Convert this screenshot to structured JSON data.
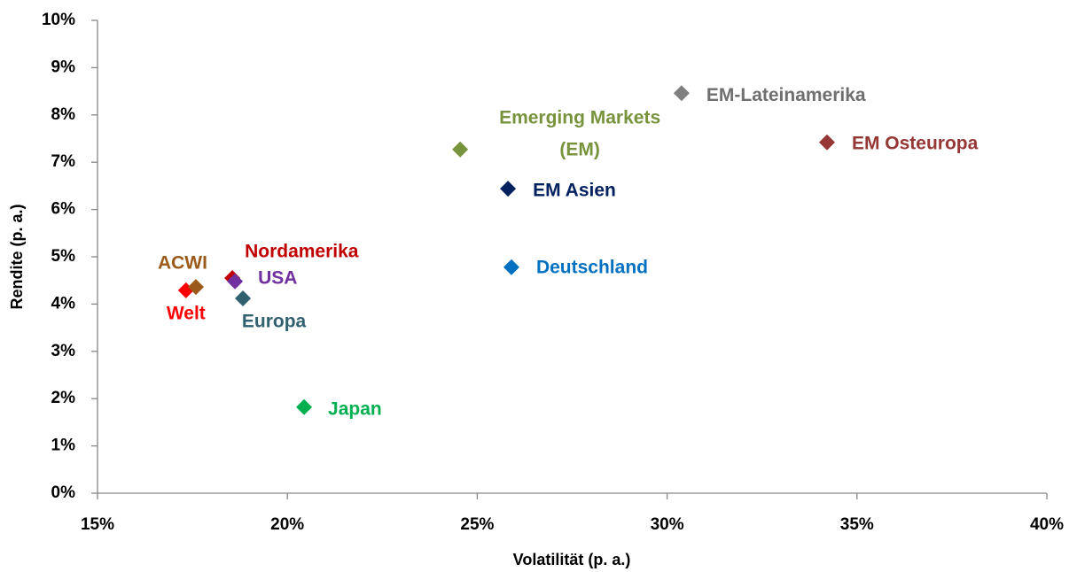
{
  "chart_data": {
    "type": "scatter",
    "x_label": "Volatilität (p. a.)",
    "y_label": "Rendite (p. a.)",
    "xlim": [
      15,
      40
    ],
    "xticks": [
      {
        "value": 15,
        "label": "15%"
      },
      {
        "value": 20,
        "label": "20%"
      },
      {
        "value": 25,
        "label": "25%"
      },
      {
        "value": 30,
        "label": "30%"
      },
      {
        "value": 35,
        "label": "35%"
      },
      {
        "value": 40,
        "label": "40%"
      }
    ],
    "ylim": [
      0,
      10
    ],
    "yticks": [
      {
        "value": 0,
        "label": "0%"
      },
      {
        "value": 1,
        "label": "1%"
      },
      {
        "value": 2,
        "label": "2%"
      },
      {
        "value": 3,
        "label": "3%"
      },
      {
        "value": 4,
        "label": "4%"
      },
      {
        "value": 5,
        "label": "5%"
      },
      {
        "value": 6,
        "label": "6%"
      },
      {
        "value": 7,
        "label": "7%"
      },
      {
        "value": 8,
        "label": "8%"
      },
      {
        "value": 9,
        "label": "9%"
      },
      {
        "value": 10,
        "label": "10%"
      }
    ],
    "grid": false,
    "points": [
      {
        "name": "Welt",
        "color": "#ff0000",
        "x": 17.33,
        "y": 4.29
      },
      {
        "name": "ACWI",
        "color": "#9c5a1a",
        "x": 17.59,
        "y": 4.36
      },
      {
        "name": "Nordamerika",
        "color": "#c00000",
        "x": 18.55,
        "y": 4.55
      },
      {
        "name": "USA",
        "color": "#7030a0",
        "x": 18.62,
        "y": 4.48
      },
      {
        "name": "Europa",
        "color": "#31606e",
        "x": 18.83,
        "y": 4.12
      },
      {
        "name": "Japan",
        "color": "#00b050",
        "x": 20.44,
        "y": 1.82
      },
      {
        "name": [
          "Emerging Markets",
          "(EM)"
        ],
        "color": "#77933c",
        "x": 24.55,
        "y": 7.27
      },
      {
        "name": "EM Asien",
        "color": "#002060",
        "x": 25.81,
        "y": 6.44
      },
      {
        "name": "Deutschland",
        "color": "#0070c0",
        "x": 25.9,
        "y": 4.78
      },
      {
        "name": "EM-Lateinamerika",
        "color": "#808080",
        "x": 30.38,
        "y": 8.46
      },
      {
        "name": "EM Osteuropa",
        "color": "#953735",
        "x": 34.21,
        "y": 7.42
      }
    ]
  }
}
